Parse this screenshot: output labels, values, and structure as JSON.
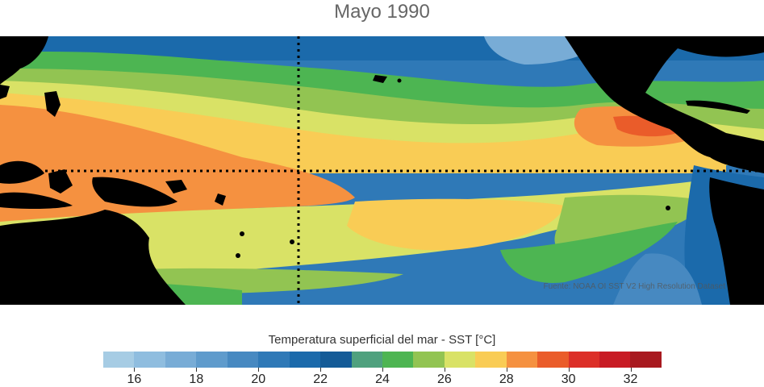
{
  "title": "Mayo 1990",
  "credit": "Fuente: NOAA OI SST V2 High Resolution Dataset",
  "colorbar": {
    "label": "Temperatura superficial del mar - SST  [°C]",
    "colors": [
      "#a6cce4",
      "#8fbddf",
      "#78acd6",
      "#5f9bcc",
      "#4789c1",
      "#2f79b7",
      "#1b6aab",
      "#145b97",
      "#4fa17e",
      "#4db552",
      "#92c452",
      "#d9e266",
      "#f9cc55",
      "#f59140",
      "#ea5c2a",
      "#dc2f28",
      "#c81b24",
      "#a8191f"
    ],
    "ticks": [
      "16",
      "18",
      "20",
      "22",
      "24",
      "26",
      "28",
      "30",
      "32"
    ]
  },
  "overlay": {
    "equator_line": "dotted",
    "meridian_line": "dotted"
  },
  "legend_colors": {
    "land": "#000000",
    "cold": "#2f79b7",
    "warm": "#f59140"
  }
}
